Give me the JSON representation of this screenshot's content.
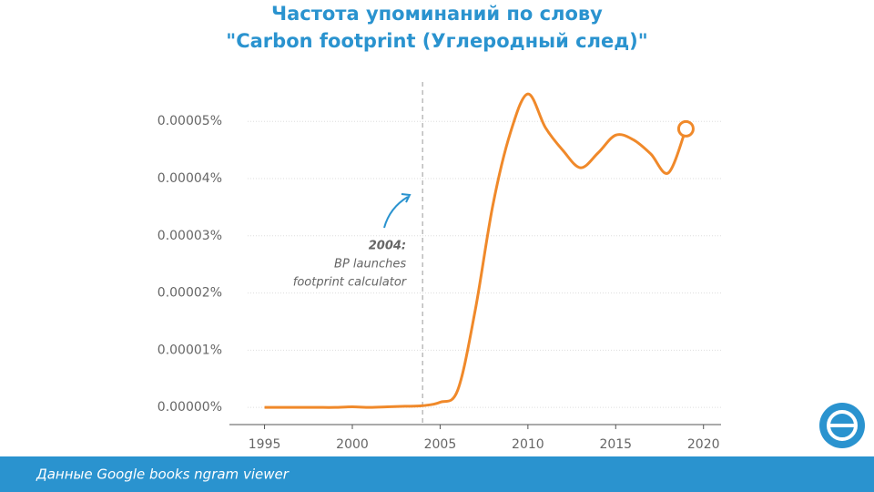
{
  "chart_data": {
    "type": "line",
    "title": [
      "Частота упоминаний по слову",
      "\"Carbon footprint (Углеродный след)\""
    ],
    "x": [
      1995,
      1996,
      1997,
      1998,
      1999,
      2000,
      2001,
      2002,
      2003,
      2004,
      2005,
      2006,
      2007,
      2008,
      2009,
      2010,
      2011,
      2012,
      2013,
      2014,
      2015,
      2016,
      2017,
      2018,
      2019
    ],
    "series": [
      {
        "name": "Carbon footprint",
        "color": "#f0892a",
        "values": [
          0,
          0,
          0,
          0,
          0,
          1e-07,
          0,
          1e-07,
          2e-07,
          3e-07,
          9e-07,
          3e-06,
          1.7e-05,
          3.53e-05,
          4.8e-05,
          5.48e-05,
          4.89e-05,
          4.49e-05,
          4.19e-05,
          4.45e-05,
          4.76e-05,
          4.68e-05,
          4.43e-05,
          4.1e-05,
          4.87e-05
        ]
      }
    ],
    "xlim": [
      1993,
      2021
    ],
    "xticks": [
      1995,
      2000,
      2005,
      2010,
      2015,
      2020
    ],
    "ylim": [
      -3e-06,
      5.8e-05
    ],
    "yticks": [
      {
        "value": 0,
        "label": "0.00000%"
      },
      {
        "value": 1e-05,
        "label": "0.00001%"
      },
      {
        "value": 2e-05,
        "label": "0.00002%"
      },
      {
        "value": 3e-05,
        "label": "0.00003%"
      },
      {
        "value": 4e-05,
        "label": "0.00004%"
      },
      {
        "value": 5e-05,
        "label": "0.00005%"
      }
    ],
    "grid": true,
    "annotation": {
      "x": 2004,
      "label": "2004:",
      "text": [
        "BP launches",
        "footprint calculator"
      ]
    },
    "source": "Данные Google books ngram viewer"
  }
}
